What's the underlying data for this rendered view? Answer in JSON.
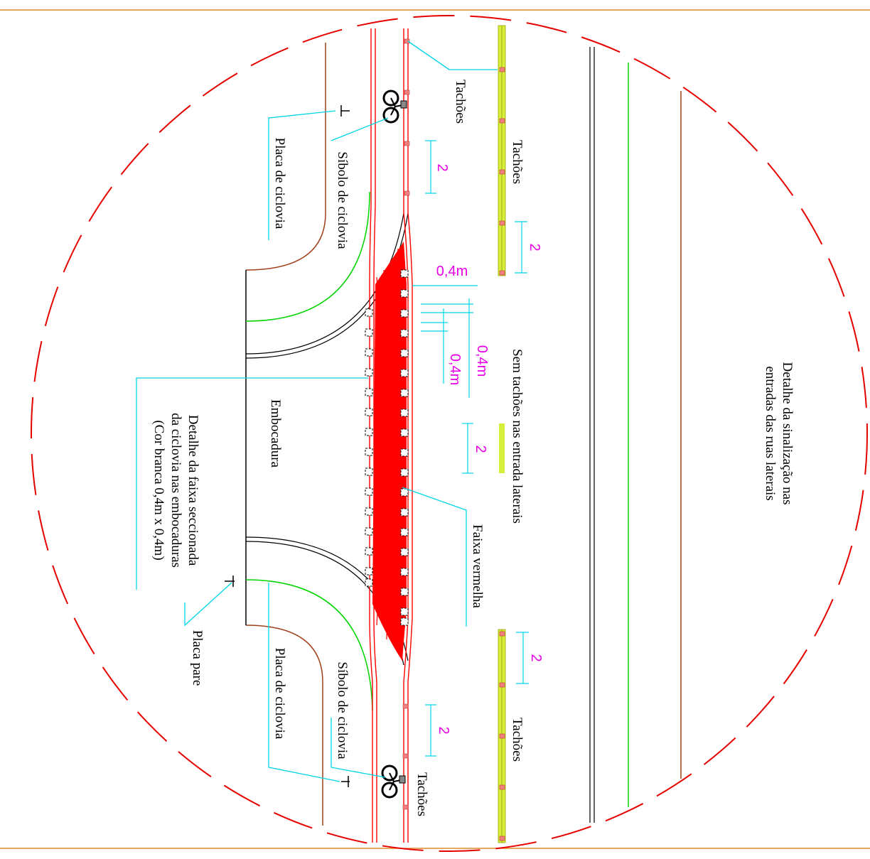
{
  "labels": {
    "title_line1": "Detalhe da sinalização nas",
    "title_line2": "entradas das ruas laterais",
    "tachoes_top_left": "Tachões",
    "tachoes_top_right": "Tachões",
    "tachoes_bottom_right": "Tachões",
    "tachoes_bottom_left": "Tachões",
    "placa_ciclovia_top": "Placa de ciclovia",
    "simbolo_top": "Síbolo de ciclovia",
    "placa_ciclovia_bottom": "Placa de ciclovia",
    "simbolo_bottom": "Síbolo de ciclovia",
    "placa_pare": "Placa pare",
    "embocadura": "Embocadura",
    "detalhe_faixa_line1": "Detalhe da faixa seccionada",
    "detalhe_faixa_line2": "da ciclovia nas embocaduras",
    "detalhe_faixa_line3": "(Cor branca 0,4m x 0,4m)",
    "sem_tachoes": "Sem tachões nas entrada laterais",
    "faixa_vermelha": "Faixa vermelha"
  },
  "dimensions": {
    "dim_2_a": "2",
    "dim_2_b": "2",
    "dim_2_c": "2",
    "dim_2_d": "2",
    "dim_2_e": "2",
    "dim_04_horizontal": "0,4m",
    "dim_04_vertical_a": "0,4m",
    "dim_04_vertical_b": "0,4m"
  },
  "colors": {
    "frame": "#e08a2c",
    "circle": "#e60000",
    "cyclelane": "#ff0000",
    "leader": "#00d5e5",
    "dimension": "#e600e6",
    "green": "#00d400",
    "brown": "#a0401a",
    "yellow": "#d7ef3c",
    "stud": "#f08080"
  }
}
